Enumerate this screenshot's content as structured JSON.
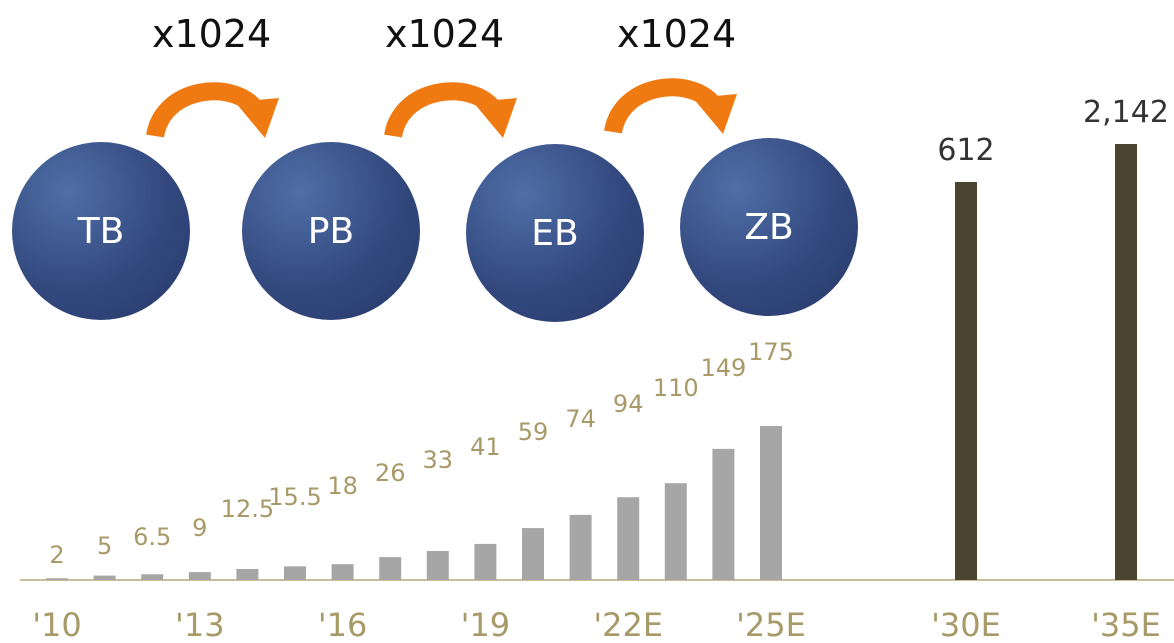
{
  "header": {
    "units": [
      "TB",
      "PB",
      "EB",
      "ZB"
    ],
    "multipliers": [
      "x1024",
      "x1024",
      "x1024"
    ]
  },
  "colors": {
    "history_bar": "#a6a6a6",
    "projection_bar": "#4a4430",
    "value_label": "#a89a68",
    "baseline": "#c8bd9a",
    "circle": "#33497e",
    "arrow": "#f07a12"
  },
  "chart_data": {
    "type": "bar",
    "title": "",
    "xlabel": "",
    "ylabel": "",
    "categories": [
      "'10",
      "'11",
      "'12",
      "'13",
      "'14",
      "'15",
      "'16",
      "'17",
      "'18",
      "'19",
      "'20",
      "'21",
      "'22E",
      "'23E",
      "'24E",
      "'25E",
      "'30E",
      "'35E"
    ],
    "values": [
      2,
      5,
      6.5,
      9,
      12.5,
      15.5,
      18,
      26,
      33,
      41,
      59,
      74,
      94,
      110,
      149,
      175,
      612,
      2142
    ],
    "value_labels": [
      "2",
      "5",
      "6.5",
      "9",
      "12.5",
      "15.5",
      "18",
      "26",
      "33",
      "41",
      "59",
      "74",
      "94",
      "110",
      "149",
      "175",
      "612",
      "2,142"
    ],
    "shown_tick_labels": [
      "'10",
      "'13",
      "'16",
      "'19",
      "'22E",
      "'25E",
      "'30E",
      "'35E"
    ],
    "scale_note": "axis break: '30E and '35E bars drawn on compressed scale",
    "grid": false,
    "legend": "none"
  }
}
